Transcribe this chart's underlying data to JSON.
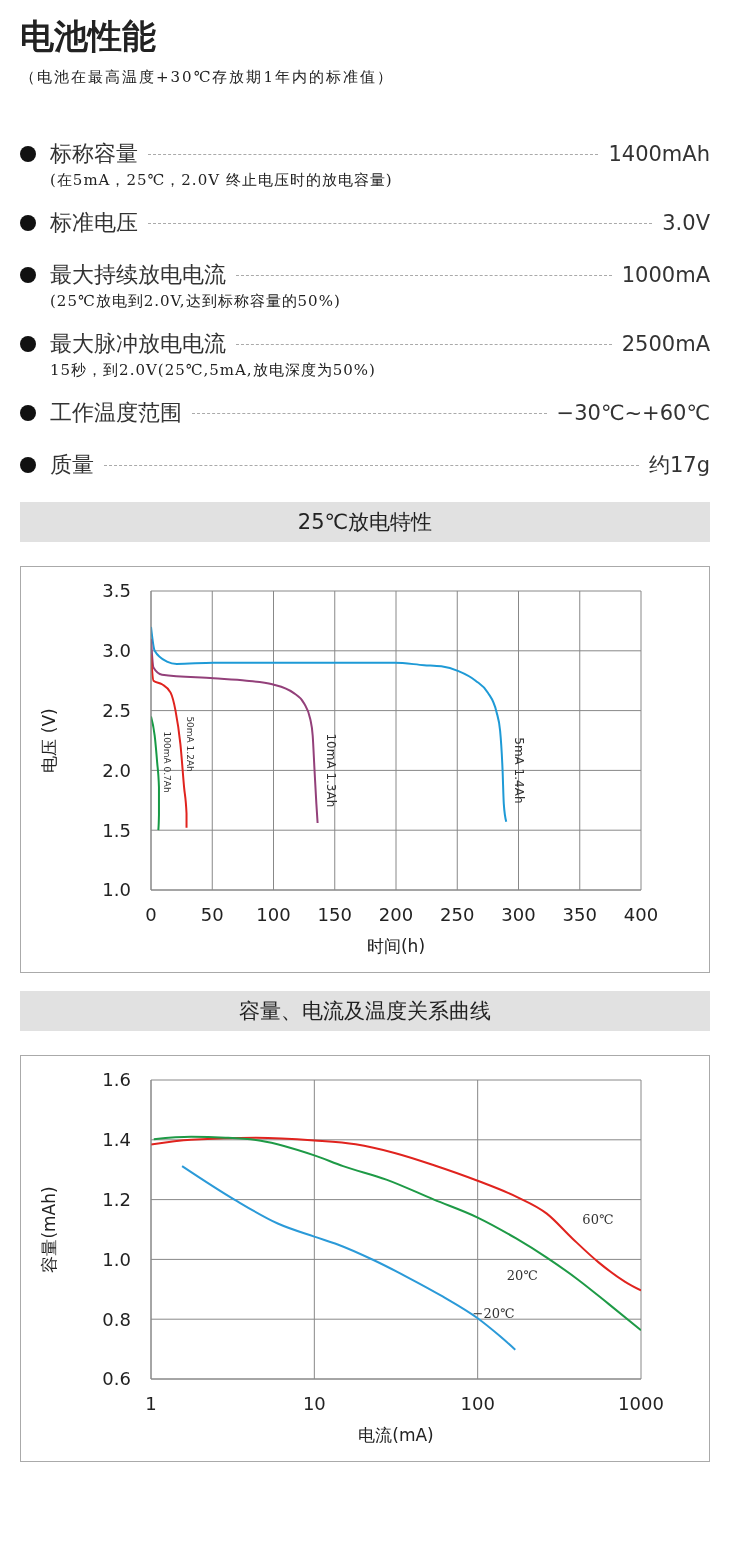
{
  "chart_data": [
    {
      "type": "other",
      "title": "电池性能",
      "subtitle": "（电池在最高温度+30℃存放期1年内的标准值）",
      "categories": [
        "标称容量",
        "标准电压",
        "最大持续放电电流",
        "最大脉冲放电电流",
        "工作温度范围",
        "质量"
      ],
      "value_labels": [
        "1400mAh",
        "3.0V",
        "1000mA",
        "2500mA",
        "−30℃~+60℃",
        "约17g"
      ],
      "annotations": [
        "(在5mA，25℃，2.0V 终止电压时的放电容量)",
        null,
        "(25℃放电到2.0V,达到标称容量的50%)",
        "15秒，到2.0V(25℃,5mA,放电深度为50%)",
        null,
        null
      ]
    },
    {
      "type": "line",
      "title": "25℃放电特性",
      "xlabel": "时间(h)",
      "ylabel": "电压 (V)",
      "xlim": [
        0,
        400
      ],
      "xticks": [
        0,
        50,
        100,
        150,
        200,
        250,
        300,
        350,
        400
      ],
      "ylim": [
        1,
        3.5
      ],
      "yticks": [
        {
          "value": 1,
          "label": "1.0"
        },
        1.5,
        {
          "value": 2,
          "label": "2.0"
        },
        2.5,
        {
          "value": 3,
          "label": "3.0"
        },
        3.5
      ],
      "grid": true,
      "legend": false,
      "marker": "none",
      "line_style": "solid",
      "series": [
        {
          "name": "5mA 1.4Ah",
          "color": "#1e9ad6",
          "x": [
            0,
            3,
            13,
            21,
            51,
            99,
            154,
            199,
            223,
            237,
            251,
            265,
            275,
            282,
            285,
            287,
            288,
            290
          ],
          "values": [
            3.2,
            3.0,
            2.91,
            2.89,
            2.9,
            2.9,
            2.9,
            2.9,
            2.88,
            2.87,
            2.83,
            2.75,
            2.65,
            2.49,
            2.33,
            2.0,
            1.72,
            1.57
          ]
        },
        {
          "name": "10mA 1.3Ah",
          "color": "#93407a",
          "x": [
            0,
            2,
            9,
            51,
            78,
            99,
            116,
            125,
            130,
            132,
            133.5,
            135,
            136
          ],
          "values": [
            3.1,
            2.86,
            2.8,
            2.77,
            2.75,
            2.72,
            2.65,
            2.56,
            2.43,
            2.29,
            2.0,
            1.72,
            1.56
          ]
        },
        {
          "name": "50mA 1.2Ah",
          "color": "#e0231e",
          "x": [
            0,
            2,
            9,
            16,
            20,
            24,
            27,
            29,
            29
          ],
          "values": [
            2.97,
            2.75,
            2.72,
            2.65,
            2.5,
            2.22,
            1.86,
            1.64,
            1.52
          ]
        },
        {
          "name": "100mA 0.7Ah",
          "color": "#179a45",
          "x": [
            0,
            3,
            5,
            6.5,
            6.5,
            6
          ],
          "values": [
            2.45,
            2.29,
            2.07,
            1.86,
            1.63,
            1.5
          ]
        }
      ]
    },
    {
      "type": "line",
      "title": "容量、电流及温度关系曲线",
      "xlabel": "电流(mA)",
      "ylabel": "容量(mAh)",
      "log": "x",
      "xlim": [
        1,
        1000
      ],
      "xticks": [
        1,
        10,
        100,
        1000
      ],
      "ylim": [
        0.6,
        1.6
      ],
      "yticks": [
        0.6,
        0.8,
        {
          "value": 1,
          "label": "1.0"
        },
        1.2,
        1.4,
        1.6
      ],
      "grid": true,
      "legend": false,
      "marker": "none",
      "line_style": "solid",
      "series": [
        {
          "name": "60℃",
          "color": "#e0231e",
          "x": [
            1,
            1.76,
            4.4,
            10,
            17.9,
            31,
            54,
            100,
            172,
            265,
            380,
            550,
            800,
            1000
          ],
          "values": [
            1.384,
            1.4,
            1.407,
            1.398,
            1.385,
            1.356,
            1.315,
            1.263,
            1.21,
            1.153,
            1.07,
            0.99,
            0.925,
            0.896
          ]
        },
        {
          "name": "20℃",
          "color": "#1e9a46",
          "x": [
            1.04,
            1.76,
            2.86,
            4.7,
            10,
            15,
            27.6,
            54,
            100,
            172,
            265,
            410,
            630,
            1000
          ],
          "values": [
            1.402,
            1.41,
            1.407,
            1.397,
            1.348,
            1.312,
            1.267,
            1.2,
            1.14,
            1.07,
            1.006,
            0.933,
            0.852,
            0.763
          ]
        },
        {
          "name": "−20℃",
          "color": "#2b9ad8",
          "x": [
            1.55,
            3.24,
            5.97,
            10,
            13.9,
            23,
            37,
            61,
            100,
            135,
            170
          ],
          "values": [
            1.312,
            1.2,
            1.12,
            1.076,
            1.05,
            0.998,
            0.941,
            0.876,
            0.803,
            0.746,
            0.698
          ]
        }
      ]
    }
  ]
}
